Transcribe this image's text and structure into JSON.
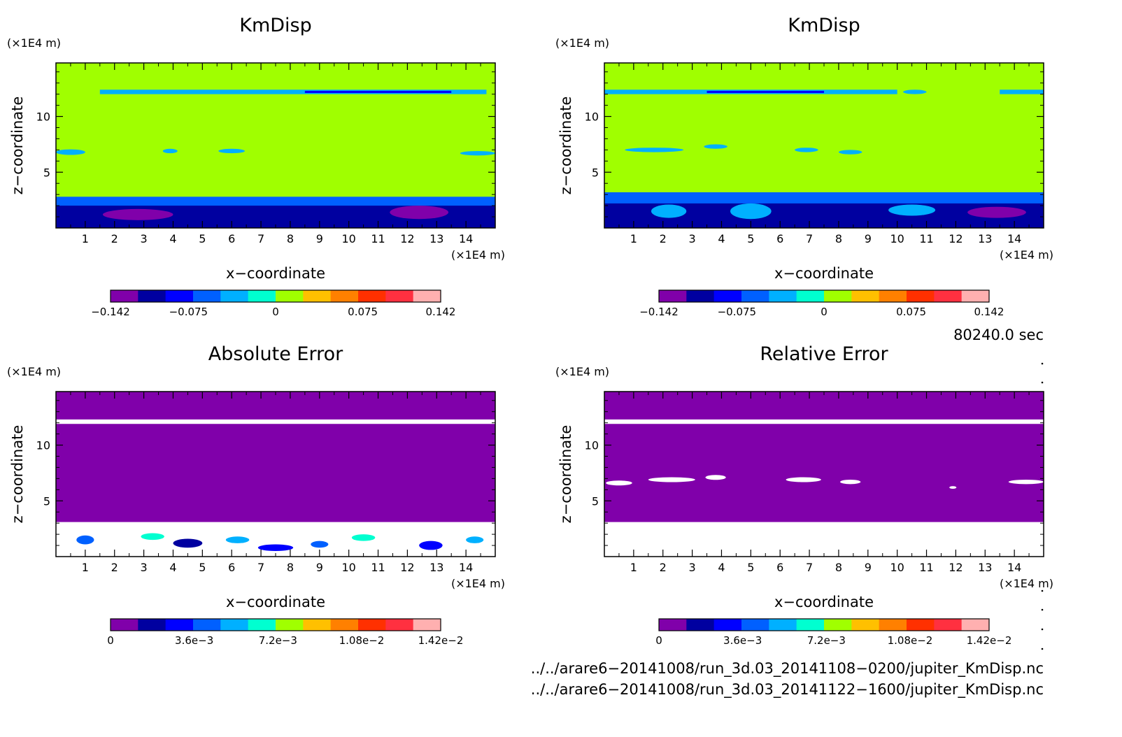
{
  "colorbar": {
    "colors": [
      "#8000aa",
      "#0000a0",
      "#0000ff",
      "#0060ff",
      "#00b0ff",
      "#00ffd0",
      "#a0ff00",
      "#ffc000",
      "#ff8000",
      "#ff3000",
      "#ff3040",
      "#ffb0b0"
    ]
  },
  "chart_data": [
    {
      "type": "heatmap",
      "title": "KmDisp",
      "xlabel": "x−coordinate",
      "ylabel": "z−coordinate",
      "x_unit": "(×1E4 m)",
      "y_unit": "(×1E4 m)",
      "xlim": [
        0,
        15
      ],
      "ylim": [
        0,
        14.8
      ],
      "x_ticks": [
        1,
        2,
        3,
        4,
        5,
        6,
        7,
        8,
        9,
        10,
        11,
        12,
        13,
        14
      ],
      "y_ticks": [
        5,
        10
      ],
      "colorbar_labels": [
        "−0.142",
        "−0.075",
        "0",
        "0.075",
        "0.142"
      ],
      "colorbar_label_values": [
        -0.142,
        -0.075,
        0,
        0.075,
        0.142
      ],
      "clim": [
        -0.142,
        0.142
      ],
      "background_value": 0.01,
      "bands": [
        {
          "x0": 0,
          "x1": 15,
          "y0": 0,
          "y1": 2.8,
          "value": -0.06
        },
        {
          "x0": 0,
          "x1": 15,
          "y0": 0,
          "y1": 2.0,
          "value": -0.1
        },
        {
          "x0": 1.5,
          "x1": 14.7,
          "y0": 12.0,
          "y1": 12.4,
          "value": -0.035
        },
        {
          "x0": 8.5,
          "x1": 13.5,
          "y0": 12.1,
          "y1": 12.3,
          "value": -0.09
        }
      ],
      "spots": [
        {
          "x": 0.5,
          "y": 6.8,
          "rx": 0.5,
          "ry": 0.25,
          "value": -0.035
        },
        {
          "x": 3.9,
          "y": 6.9,
          "rx": 0.25,
          "ry": 0.2,
          "value": -0.035
        },
        {
          "x": 6.0,
          "y": 6.9,
          "rx": 0.45,
          "ry": 0.2,
          "value": -0.035
        },
        {
          "x": 14.4,
          "y": 6.7,
          "rx": 0.6,
          "ry": 0.2,
          "value": -0.035
        },
        {
          "x": 2.8,
          "y": 1.2,
          "rx": 1.2,
          "ry": 0.5,
          "value": -0.14
        },
        {
          "x": 12.4,
          "y": 1.4,
          "rx": 1.0,
          "ry": 0.6,
          "value": -0.14
        }
      ]
    },
    {
      "type": "heatmap",
      "title": "KmDisp",
      "xlabel": "x−coordinate",
      "ylabel": "z−coordinate",
      "x_unit": "(×1E4 m)",
      "y_unit": "(×1E4 m)",
      "xlim": [
        0,
        15
      ],
      "ylim": [
        0,
        14.8
      ],
      "x_ticks": [
        1,
        2,
        3,
        4,
        5,
        6,
        7,
        8,
        9,
        10,
        11,
        12,
        13,
        14
      ],
      "y_ticks": [
        5,
        10
      ],
      "colorbar_labels": [
        "−0.142",
        "−0.075",
        "0",
        "0.075",
        "0.142"
      ],
      "colorbar_label_values": [
        -0.142,
        -0.075,
        0,
        0.075,
        0.142
      ],
      "clim": [
        -0.142,
        0.142
      ],
      "background_value": 0.01,
      "bands": [
        {
          "x0": 0,
          "x1": 15,
          "y0": 0,
          "y1": 3.2,
          "value": -0.06
        },
        {
          "x0": 0,
          "x1": 15,
          "y0": 0,
          "y1": 2.2,
          "value": -0.1
        },
        {
          "x0": 0,
          "x1": 10,
          "y0": 12.0,
          "y1": 12.4,
          "value": -0.035
        },
        {
          "x0": 13.5,
          "x1": 15,
          "y0": 12.0,
          "y1": 12.4,
          "value": -0.035
        },
        {
          "x0": 3.5,
          "x1": 7.5,
          "y0": 12.1,
          "y1": 12.3,
          "value": -0.09
        }
      ],
      "spots": [
        {
          "x": 1.7,
          "y": 7.0,
          "rx": 1.0,
          "ry": 0.2,
          "value": -0.035
        },
        {
          "x": 3.8,
          "y": 7.3,
          "rx": 0.4,
          "ry": 0.2,
          "value": -0.035
        },
        {
          "x": 6.9,
          "y": 7.0,
          "rx": 0.4,
          "ry": 0.2,
          "value": -0.035
        },
        {
          "x": 8.4,
          "y": 6.8,
          "rx": 0.4,
          "ry": 0.2,
          "value": -0.035
        },
        {
          "x": 10.6,
          "y": 12.2,
          "rx": 0.4,
          "ry": 0.2,
          "value": -0.035
        },
        {
          "x": 2.2,
          "y": 1.5,
          "rx": 0.6,
          "ry": 0.6,
          "value": -0.04
        },
        {
          "x": 5.0,
          "y": 1.5,
          "rx": 0.7,
          "ry": 0.7,
          "value": -0.04
        },
        {
          "x": 10.5,
          "y": 1.6,
          "rx": 0.8,
          "ry": 0.5,
          "value": -0.04
        },
        {
          "x": 13.4,
          "y": 1.4,
          "rx": 1.0,
          "ry": 0.5,
          "value": -0.14
        }
      ]
    },
    {
      "type": "heatmap",
      "title": "Absolute Error",
      "xlabel": "x−coordinate",
      "ylabel": "z−coordinate",
      "x_unit": "(×1E4 m)",
      "y_unit": "(×1E4 m)",
      "xlim": [
        0,
        15
      ],
      "ylim": [
        0,
        14.8
      ],
      "x_ticks": [
        1,
        2,
        3,
        4,
        5,
        6,
        7,
        8,
        9,
        10,
        11,
        12,
        13,
        14
      ],
      "y_ticks": [
        5,
        10
      ],
      "colorbar_labels": [
        "0",
        "3.6e−3",
        "7.2e−3",
        "1.08e−2",
        "1.42e−2"
      ],
      "colorbar_label_values": [
        0,
        0.0036,
        0.0072,
        0.0108,
        0.0142
      ],
      "clim": [
        0,
        0.0142
      ],
      "background_value": 0,
      "bands": [
        {
          "x0": 0,
          "x1": 15,
          "y0": 0,
          "y1": 3.1,
          "value": null
        },
        {
          "x0": 0,
          "x1": 15,
          "y0": 11.9,
          "y1": 12.3,
          "value": null
        }
      ],
      "spots": [
        {
          "x": 1.0,
          "y": 1.5,
          "rx": 0.3,
          "ry": 0.4,
          "value": 0.004
        },
        {
          "x": 3.3,
          "y": 1.8,
          "rx": 0.4,
          "ry": 0.3,
          "value": 0.007
        },
        {
          "x": 4.5,
          "y": 1.2,
          "rx": 0.5,
          "ry": 0.4,
          "value": 0.002
        },
        {
          "x": 6.2,
          "y": 1.5,
          "rx": 0.4,
          "ry": 0.3,
          "value": 0.005
        },
        {
          "x": 7.5,
          "y": 0.8,
          "rx": 0.6,
          "ry": 0.3,
          "value": 0.003
        },
        {
          "x": 9.0,
          "y": 1.1,
          "rx": 0.3,
          "ry": 0.3,
          "value": 0.004
        },
        {
          "x": 10.5,
          "y": 1.7,
          "rx": 0.4,
          "ry": 0.3,
          "value": 0.006
        },
        {
          "x": 12.8,
          "y": 1.0,
          "rx": 0.4,
          "ry": 0.4,
          "value": 0.003
        },
        {
          "x": 14.3,
          "y": 1.5,
          "rx": 0.3,
          "ry": 0.3,
          "value": 0.005
        }
      ]
    },
    {
      "type": "heatmap",
      "title": "Relative Error",
      "xlabel": "x−coordinate",
      "ylabel": "z−coordinate",
      "x_unit": "(×1E4 m)",
      "y_unit": "(×1E4 m)",
      "xlim": [
        0,
        15
      ],
      "ylim": [
        0,
        14.8
      ],
      "x_ticks": [
        1,
        2,
        3,
        4,
        5,
        6,
        7,
        8,
        9,
        10,
        11,
        12,
        13,
        14
      ],
      "y_ticks": [
        5,
        10
      ],
      "colorbar_labels": [
        "0",
        "3.6e−3",
        "7.2e−3",
        "1.08e−2",
        "1.42e−2"
      ],
      "colorbar_label_values": [
        0,
        0.0036,
        0.0072,
        0.0108,
        0.0142
      ],
      "clim": [
        0,
        0.0142
      ],
      "background_value": 0,
      "bands": [
        {
          "x0": 0,
          "x1": 15,
          "y0": 0,
          "y1": 3.1,
          "value": null
        },
        {
          "x0": 0,
          "x1": 15,
          "y0": 11.9,
          "y1": 12.3,
          "value": null
        }
      ],
      "spots": [
        {
          "x": 0.5,
          "y": 6.6,
          "rx": 0.45,
          "ry": 0.22,
          "value": null
        },
        {
          "x": 2.3,
          "y": 6.9,
          "rx": 0.8,
          "ry": 0.22,
          "value": null
        },
        {
          "x": 3.8,
          "y": 7.1,
          "rx": 0.35,
          "ry": 0.22,
          "value": null
        },
        {
          "x": 6.8,
          "y": 6.9,
          "rx": 0.6,
          "ry": 0.22,
          "value": null
        },
        {
          "x": 8.4,
          "y": 6.7,
          "rx": 0.35,
          "ry": 0.2,
          "value": null
        },
        {
          "x": 11.9,
          "y": 6.2,
          "rx": 0.12,
          "ry": 0.12,
          "value": null
        },
        {
          "x": 14.4,
          "y": 6.7,
          "rx": 0.6,
          "ry": 0.2,
          "value": null
        }
      ]
    }
  ],
  "time_label": "80240.0 sec",
  "files": [
    "../../arare6−20141008/run_3d.03_20141108−0200/jupiter_KmDisp.nc",
    "../../arare6−20141008/run_3d.03_20141122−1600/jupiter_KmDisp.nc"
  ]
}
